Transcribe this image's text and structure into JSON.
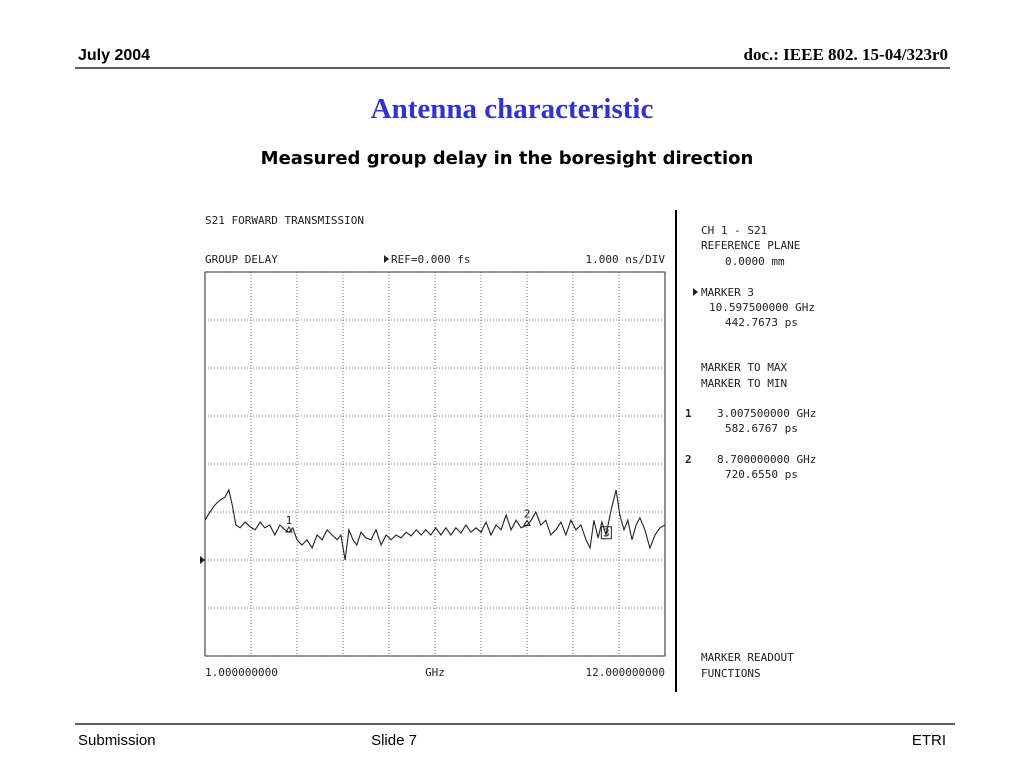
{
  "header": {
    "date": "July 2004",
    "doc": "doc.: IEEE 802. 15-04/323r0"
  },
  "title": "Antenna characteristic",
  "subtitle": "Measured group delay in the boresight direction",
  "instrument": {
    "heading": "S21 FORWARD TRANSMISSION",
    "mode": "GROUP DELAY",
    "ref": "REF=0.000 fs",
    "scale": "1.000 ns/DIV",
    "panel": {
      "channel": "CH 1 - S21",
      "plane_label": "REFERENCE PLANE",
      "plane_value": "0.0000 mm",
      "active_marker": "MARKER 3",
      "active_freq": "10.597500000 GHz",
      "active_delay": "442.7673 ps",
      "to_max": "MARKER TO MAX",
      "to_min": "MARKER TO MIN",
      "readouts": [
        {
          "id": "1",
          "freq": "3.007500000 GHz",
          "delay": "582.6767 ps"
        },
        {
          "id": "2",
          "freq": "8.700000000 GHz",
          "delay": "720.6550 ps"
        }
      ],
      "functions_1": "MARKER READOUT",
      "functions_2": "FUNCTIONS"
    }
  },
  "chart_data": {
    "type": "line",
    "xlabel": "GHz",
    "color": "#222222",
    "xlim": [
      1,
      12
    ],
    "xticks": [
      {
        "value": 1,
        "label": "1.000000000"
      },
      {
        "value": 12,
        "label": "12.000000000"
      }
    ],
    "ylim": [
      -2,
      6
    ],
    "yticks": [
      -2,
      -1,
      0,
      1,
      2,
      3,
      4,
      5,
      6
    ],
    "ref_value": 0,
    "x": [
      1.0,
      1.12,
      1.24,
      1.36,
      1.48,
      1.57,
      1.65,
      1.74,
      1.84,
      1.96,
      2.08,
      2.2,
      2.32,
      2.43,
      2.55,
      2.67,
      2.79,
      2.91,
      3.01,
      3.1,
      3.2,
      3.32,
      3.44,
      3.56,
      3.68,
      3.8,
      3.92,
      4.04,
      4.16,
      4.25,
      4.35,
      4.44,
      4.54,
      4.63,
      4.73,
      4.85,
      4.97,
      5.09,
      5.21,
      5.33,
      5.45,
      5.57,
      5.69,
      5.81,
      5.93,
      6.05,
      6.17,
      6.28,
      6.4,
      6.52,
      6.64,
      6.76,
      6.88,
      7.0,
      7.12,
      7.24,
      7.36,
      7.48,
      7.6,
      7.72,
      7.84,
      7.96,
      8.08,
      8.2,
      8.32,
      8.44,
      8.56,
      8.7,
      8.8,
      8.91,
      9.03,
      9.15,
      9.27,
      9.39,
      9.51,
      9.63,
      9.75,
      9.87,
      9.99,
      10.11,
      10.21,
      10.3,
      10.4,
      10.49,
      10.59,
      10.71,
      10.83,
      10.92,
      11.02,
      11.11,
      11.21,
      11.31,
      11.4,
      11.52,
      11.64,
      11.76,
      11.88,
      12.0
    ],
    "values": [
      0.83,
      1.0,
      1.15,
      1.25,
      1.31,
      1.46,
      1.15,
      0.73,
      0.67,
      0.79,
      0.69,
      0.63,
      0.79,
      0.67,
      0.73,
      0.52,
      0.73,
      0.63,
      0.58,
      0.67,
      0.42,
      0.31,
      0.42,
      0.25,
      0.52,
      0.42,
      0.63,
      0.52,
      0.42,
      0.52,
      0.0,
      0.63,
      0.42,
      0.31,
      0.58,
      0.46,
      0.42,
      0.63,
      0.31,
      0.52,
      0.42,
      0.52,
      0.46,
      0.58,
      0.5,
      0.63,
      0.52,
      0.63,
      0.52,
      0.67,
      0.52,
      0.67,
      0.52,
      0.67,
      0.56,
      0.73,
      0.58,
      0.67,
      0.58,
      0.79,
      0.52,
      0.73,
      0.63,
      0.94,
      0.63,
      0.83,
      0.67,
      0.72,
      0.83,
      1.0,
      0.73,
      0.83,
      0.52,
      0.63,
      0.79,
      0.52,
      0.83,
      0.63,
      0.73,
      0.42,
      0.25,
      0.83,
      0.46,
      0.79,
      0.52,
      1.04,
      1.46,
      0.94,
      0.63,
      0.83,
      0.42,
      0.73,
      0.88,
      0.63,
      0.25,
      0.52,
      0.67,
      0.73
    ],
    "markers": [
      {
        "label": "1",
        "x": 3.0075,
        "value": 0.5827
      },
      {
        "label": "2",
        "x": 8.7,
        "value": 0.7207
      },
      {
        "label": "3",
        "x": 10.5975,
        "value": 0.4428
      }
    ]
  },
  "footer": {
    "left": "Submission",
    "center": "Slide 7",
    "right": "ETRI"
  }
}
